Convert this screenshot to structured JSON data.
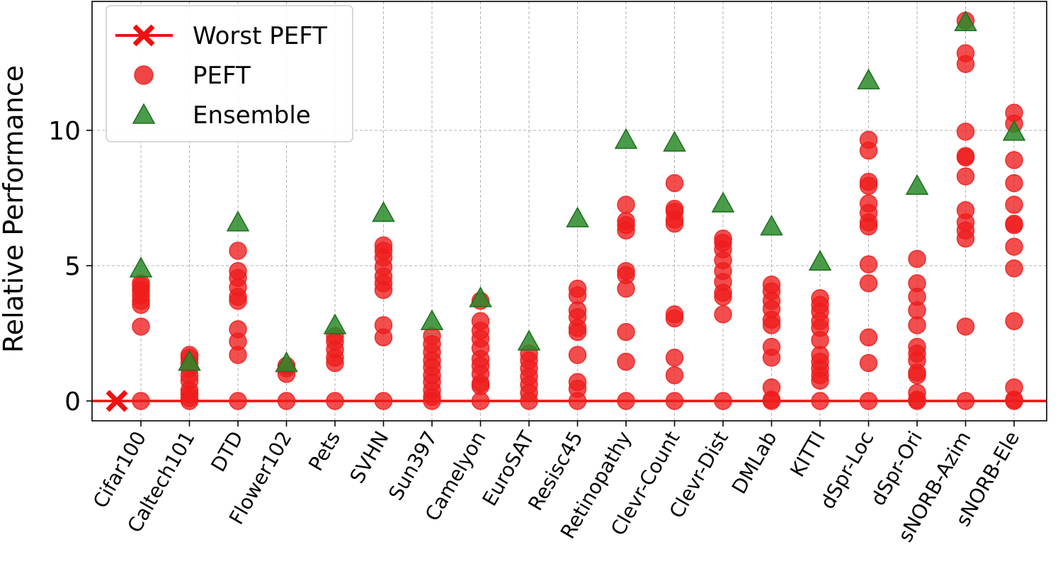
{
  "chart_data": {
    "type": "scatter",
    "ylabel": "Relative Performance",
    "xlabel": "",
    "ylim": [
      -0.75,
      14.8
    ],
    "yticks": [
      0,
      5,
      10
    ],
    "grid": true,
    "legend_position": "top-left",
    "categories": [
      "Cifar100",
      "Caltech101",
      "DTD",
      "Flower102",
      "Pets",
      "SVHN",
      "Sun397",
      "Camelyon",
      "EuroSAT",
      "Resisc45",
      "Retinopathy",
      "Clevr-Count",
      "Clevr-Dist",
      "DMLab",
      "KITTI",
      "dSpr-Loc",
      "dSpr-Ori",
      "sNORB-Azim",
      "sNORB-Ele"
    ],
    "colors": {
      "peft": "#ee1c1c",
      "ensemble": "#2a8a2a",
      "worst": "#ee1111"
    },
    "series": [
      {
        "name": "Worst PEFT",
        "marker": "x-line",
        "value": 0
      },
      {
        "name": "PEFT",
        "marker": "circle",
        "values": [
          [
            0,
            2.75,
            3.55,
            3.7,
            3.9,
            4.1,
            4.25,
            4.35
          ],
          [
            0,
            0.1,
            0.25,
            0.4,
            0.75,
            0.95,
            1.2,
            1.4,
            1.6,
            1.7
          ],
          [
            0,
            1.7,
            2.2,
            2.65,
            3.7,
            3.85,
            4.2,
            4.55,
            4.8,
            5.55
          ],
          [
            0,
            1.0,
            1.2,
            1.3
          ],
          [
            0,
            1.4,
            1.6,
            1.9,
            2.2,
            2.4
          ],
          [
            0,
            2.35,
            2.8,
            4.1,
            4.35,
            4.6,
            4.95,
            5.3,
            5.55,
            5.75
          ],
          [
            0,
            0.15,
            0.4,
            0.7,
            0.95,
            1.25,
            1.5,
            1.8,
            2.1,
            2.4
          ],
          [
            0,
            0.55,
            0.65,
            1.0,
            1.3,
            1.55,
            1.95,
            2.3,
            2.6,
            2.95,
            3.7
          ],
          [
            0,
            0.3,
            0.6,
            0.9,
            1.2,
            1.5,
            1.75
          ],
          [
            0,
            0.45,
            0.7,
            1.7,
            2.55,
            2.7,
            3.1,
            3.35,
            3.9,
            4.15
          ],
          [
            0,
            1.45,
            2.55,
            4.15,
            4.65,
            4.8,
            6.3,
            6.5,
            6.65,
            7.25
          ],
          [
            0,
            0.95,
            1.6,
            3.05,
            3.2,
            6.55,
            6.7,
            7.0,
            7.1,
            8.05
          ],
          [
            0,
            3.2,
            3.85,
            4.0,
            4.4,
            4.8,
            5.2,
            5.6,
            5.85,
            6.0
          ],
          [
            0,
            0.05,
            0.5,
            1.6,
            2.0,
            2.8,
            3.0,
            3.4,
            3.7,
            4.05,
            4.3
          ],
          [
            0,
            0.75,
            0.95,
            1.2,
            1.45,
            1.7,
            2.25,
            2.7,
            2.95,
            3.3,
            3.55,
            3.8
          ],
          [
            0,
            1.4,
            2.35,
            4.35,
            5.05,
            6.45,
            6.6,
            6.95,
            7.3,
            7.95,
            8.1,
            9.25,
            9.65
          ],
          [
            0,
            0.05,
            0.3,
            0.95,
            1.05,
            1.5,
            1.75,
            2.0,
            2.8,
            3.35,
            3.85,
            4.35,
            5.25
          ],
          [
            0,
            2.75,
            6.0,
            6.3,
            6.6,
            7.05,
            8.3,
            9.0,
            9.05,
            9.95,
            12.45,
            12.85,
            14.05
          ],
          [
            0,
            0.05,
            0.5,
            2.95,
            4.9,
            5.7,
            6.5,
            6.55,
            7.25,
            8.05,
            8.9,
            10.25,
            10.65
          ]
        ]
      },
      {
        "name": "Ensemble",
        "marker": "triangle",
        "values": [
          4.9,
          1.45,
          6.6,
          1.4,
          2.8,
          6.95,
          2.95,
          3.8,
          2.2,
          6.75,
          9.65,
          9.55,
          7.3,
          6.45,
          5.15,
          11.85,
          7.95,
          14.0,
          9.95
        ]
      }
    ]
  }
}
